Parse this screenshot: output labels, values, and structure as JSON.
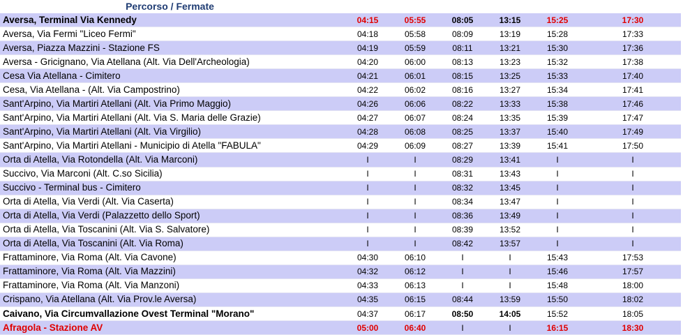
{
  "header": {
    "title": "Percorso / Fermate"
  },
  "rows": [
    {
      "stop": "Aversa, Terminal Via Kennedy",
      "times": [
        "04:15",
        "05:55",
        "08:05",
        "13:15",
        "15:25",
        "17:30"
      ],
      "style": "bold",
      "tstyle": [
        "r",
        "r",
        "b",
        "b",
        "r",
        "r"
      ]
    },
    {
      "stop": "Aversa,  Via Fermi \"Liceo Fermi\"",
      "times": [
        "04:18",
        "05:58",
        "08:09",
        "13:19",
        "15:28",
        "17:33"
      ]
    },
    {
      "stop": "Aversa, Piazza Mazzini - Stazione FS",
      "times": [
        "04:19",
        "05:59",
        "08:11",
        "13:21",
        "15:30",
        "17:36"
      ]
    },
    {
      "stop": "Aversa - Gricignano, Via Atellana (Alt. Via Dell'Archeologia)",
      "times": [
        "04:20",
        "06:00",
        "08:13",
        "13:23",
        "15:32",
        "17:38"
      ]
    },
    {
      "stop": "Cesa Via Atellana - Cimitero",
      "times": [
        "04:21",
        "06:01",
        "08:15",
        "13:25",
        "15:33",
        "17:40"
      ]
    },
    {
      "stop": "Cesa, Via Atellana - (Alt. Via Campostrino)",
      "times": [
        "04:22",
        "06:02",
        "08:16",
        "13:27",
        "15:34",
        "17:41"
      ]
    },
    {
      "stop": "Sant'Arpino, Via Martiri Atellani (Alt. Via Primo Maggio)",
      "times": [
        "04:26",
        "06:06",
        "08:22",
        "13:33",
        "15:38",
        "17:46"
      ]
    },
    {
      "stop": "Sant'Arpino, Via Martiri Atellani (Alt. Via S. Maria delle Grazie)",
      "times": [
        "04:27",
        "06:07",
        "08:24",
        "13:35",
        "15:39",
        "17:47"
      ]
    },
    {
      "stop": "Sant'Arpino, Via Martiri Atellani (Alt. Via Virgilio)",
      "times": [
        "04:28",
        "06:08",
        "08:25",
        "13:37",
        "15:40",
        "17:49"
      ]
    },
    {
      "stop": "Sant'Arpino, Via Martiri Atellani - Municipio di Atella \"FABULA\"",
      "times": [
        "04:29",
        "06:09",
        "08:27",
        "13:39",
        "15:41",
        "17:50"
      ]
    },
    {
      "stop": "Orta di Atella, Via Rotondella (Alt. Via Marconi)",
      "times": [
        "I",
        "I",
        "08:29",
        "13:41",
        "I",
        "I"
      ]
    },
    {
      "stop": "Succivo, Via Marconi (Alt. C.so Sicilia)",
      "times": [
        "I",
        "I",
        "08:31",
        "13:43",
        "I",
        "I"
      ]
    },
    {
      "stop": "Succivo - Terminal bus - Cimitero",
      "times": [
        "I",
        "I",
        "08:32",
        "13:45",
        "I",
        "I"
      ]
    },
    {
      "stop": "Orta di Atella, Via Verdi (Alt. Via Caserta)",
      "times": [
        "I",
        "I",
        "08:34",
        "13:47",
        "I",
        "I"
      ]
    },
    {
      "stop": "Orta di Atella, Via Verdi (Palazzetto dello Sport)",
      "times": [
        "I",
        "I",
        "08:36",
        "13:49",
        "I",
        "I"
      ]
    },
    {
      "stop": "Orta di Atella, Via Toscanini (Alt. Via S. Salvatore)",
      "times": [
        "I",
        "I",
        "08:39",
        "13:52",
        "I",
        "I"
      ]
    },
    {
      "stop": "Orta di Atella, Via Toscanini (Alt. Via Roma)",
      "times": [
        "I",
        "I",
        "08:42",
        "13:57",
        "I",
        "I"
      ]
    },
    {
      "stop": "Frattaminore, Via Roma (Alt. Via Cavone)",
      "times": [
        "04:30",
        "06:10",
        "I",
        "I",
        "15:43",
        "17:53"
      ]
    },
    {
      "stop": "Frattaminore, Via Roma (Alt. Via Mazzini)",
      "times": [
        "04:32",
        "06:12",
        "I",
        "I",
        "15:46",
        "17:57"
      ]
    },
    {
      "stop": "Frattaminore, Via Roma (Alt. Via Manzoni)",
      "times": [
        "04:33",
        "06:13",
        "I",
        "I",
        "15:48",
        "18:00"
      ]
    },
    {
      "stop": "Crispano, Via Atellana (Alt. Via Prov.le Aversa)",
      "times": [
        "04:35",
        "06:15",
        "08:44",
        "13:59",
        "15:50",
        "18:02"
      ]
    },
    {
      "stop": "Caivano, Via Circumvallazione Ovest Terminal \"Morano\"",
      "times": [
        "04:37",
        "06:17",
        "08:50",
        "14:05",
        "15:52",
        "18:05"
      ],
      "style": "bold",
      "tstyle": [
        "",
        "",
        "b",
        "b",
        "",
        ""
      ]
    },
    {
      "stop": "Afragola - Stazione AV",
      "times": [
        "05:00",
        "06:40",
        "I",
        "I",
        "16:15",
        "18:30"
      ],
      "style": "red",
      "tstyle": [
        "r",
        "r",
        "",
        "",
        "r",
        "r"
      ]
    }
  ],
  "colors": {
    "lavender": "#ccccf7",
    "red": "#e00000",
    "title": "#1f3c73"
  }
}
